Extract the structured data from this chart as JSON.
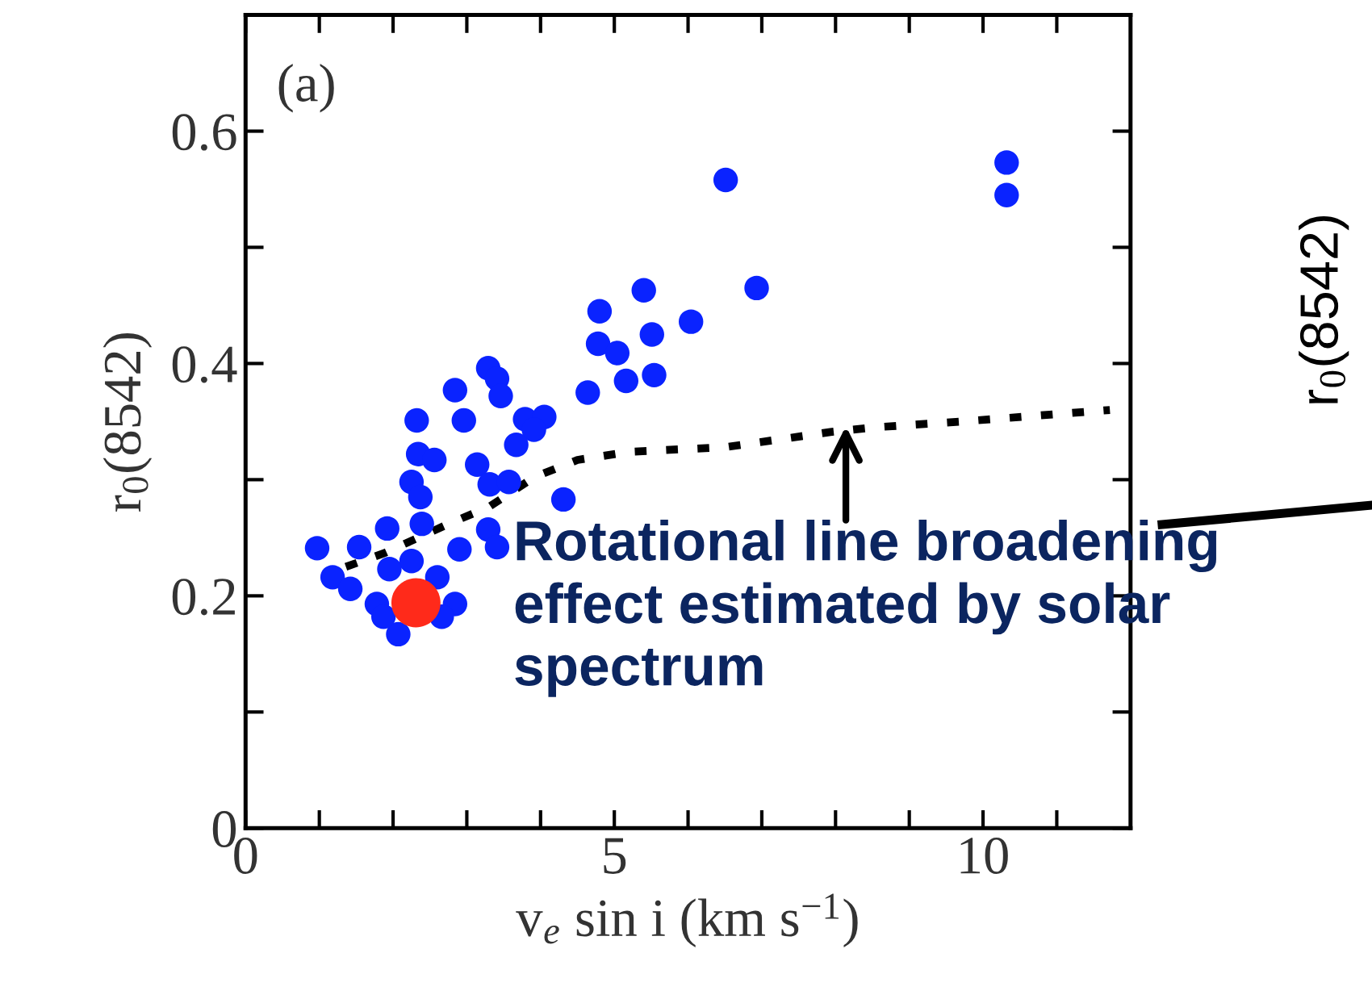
{
  "chart_data": {
    "type": "scatter",
    "xlabel": "v$_{e}$ sin i (km s$^{−1}$)",
    "ylabel": "r$_{0}$(8542)",
    "xlim": [
      0,
      12
    ],
    "ylim": [
      0,
      0.7
    ],
    "xticks": [
      0,
      {
        "value": 1,
        "label": null
      },
      {
        "value": 2,
        "label": null
      },
      {
        "value": 3,
        "label": null
      },
      {
        "value": 4,
        "label": null
      },
      5,
      {
        "value": 6,
        "label": null
      },
      {
        "value": 7,
        "label": null
      },
      {
        "value": 8,
        "label": null
      },
      {
        "value": 9,
        "label": null
      },
      10,
      {
        "value": 11,
        "label": null
      }
    ],
    "yticks": [
      0,
      {
        "value": 0.1,
        "label": null
      },
      0.2,
      {
        "value": 0.3,
        "label": null
      },
      0.4,
      {
        "value": 0.5,
        "label": null
      },
      0.6
    ],
    "grid": false,
    "legend": false,
    "marker": "circle",
    "series": [
      {
        "color": "#0a23ff",
        "x": [
          6.51,
          10.32,
          10.32,
          6.93,
          5.4,
          4.8,
          6.04,
          5.51,
          4.78,
          5.04,
          5.54,
          5.16,
          4.64,
          3.29,
          3.41,
          3.46,
          2.84,
          2.32,
          2.96,
          3.79,
          4.05,
          3.91,
          3.67,
          2.34,
          2.56,
          3.14,
          2.25,
          3.31,
          3.57,
          2.37,
          4.31,
          2.39,
          3.29,
          3.41,
          2.9,
          1.92,
          0.97,
          1.54,
          1.18,
          1.42,
          1.78,
          2.07,
          1.87,
          2.25,
          2.6,
          2.84,
          2.66,
          1.95
        ],
        "values": [
          0.558,
          0.573,
          0.545,
          0.465,
          0.463,
          0.445,
          0.436,
          0.425,
          0.417,
          0.409,
          0.39,
          0.385,
          0.375,
          0.396,
          0.387,
          0.372,
          0.377,
          0.351,
          0.351,
          0.352,
          0.354,
          0.343,
          0.33,
          0.322,
          0.317,
          0.313,
          0.298,
          0.296,
          0.298,
          0.285,
          0.283,
          0.262,
          0.257,
          0.242,
          0.24,
          0.258,
          0.241,
          0.242,
          0.216,
          0.206,
          0.193,
          0.167,
          0.182,
          0.23,
          0.216,
          0.193,
          0.182,
          0.223
        ]
      },
      {
        "color": "#ff2a1a",
        "x": [
          2.31
        ],
        "values": [
          0.194
        ]
      },
      {
        "type": "line",
        "color": "#000000",
        "line_style": "dashed",
        "marker": "none",
        "x": [
          1.36,
          1.89,
          2.72,
          3.31,
          3.91,
          4.5,
          5.21,
          6.51,
          7.93,
          8.52,
          9.7,
          11.72
        ],
        "values": [
          0.225,
          0.237,
          0.261,
          0.277,
          0.302,
          0.317,
          0.324,
          0.328,
          0.341,
          0.345,
          0.35,
          0.36
        ]
      }
    ],
    "annotations": [
      "(a)",
      {
        "text": "Rotational line broadening effect estimated by solar spectrum",
        "x": 8.14,
        "y": 0.35
      },
      "r$_{0}$(8542)"
    ]
  }
}
